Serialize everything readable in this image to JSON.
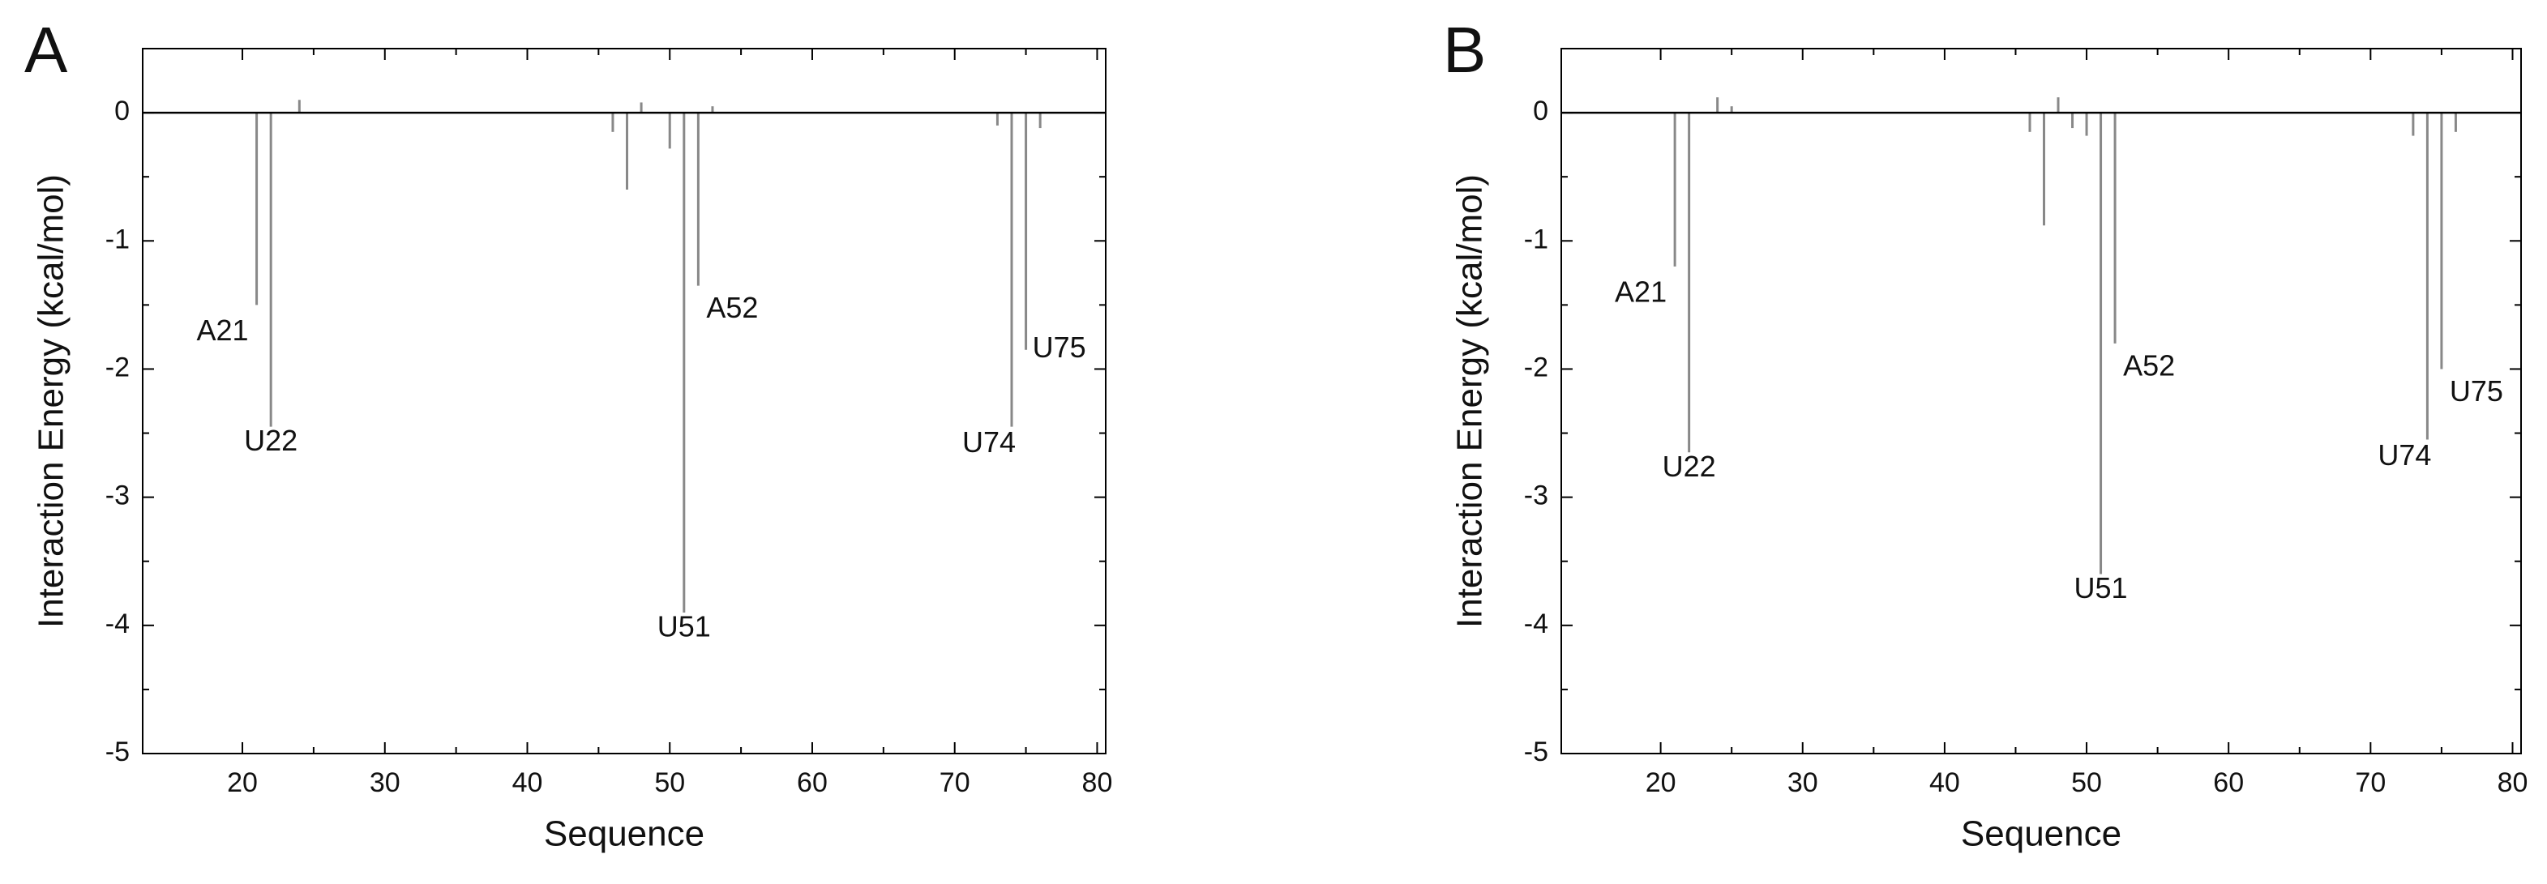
{
  "chart_data": [
    {
      "type": "bar",
      "title": "A",
      "xlabel": "Sequence",
      "ylabel": "Interaction Energy (kcal/mol)",
      "color": "#888888",
      "x": [
        21,
        22,
        24,
        46,
        47,
        48,
        50,
        51,
        52,
        53,
        73,
        74,
        75,
        76
      ],
      "values": [
        -1.5,
        -2.45,
        0.1,
        -0.15,
        -0.6,
        0.08,
        -0.28,
        -3.9,
        -1.35,
        0.05,
        -0.1,
        -2.45,
        -1.85,
        -0.12
      ],
      "point_labels": [
        "A21",
        "U22",
        null,
        null,
        null,
        null,
        null,
        "U51",
        "A52",
        null,
        null,
        "U74",
        "U75",
        null
      ],
      "xlim": [
        13,
        80.6
      ],
      "xticks": [
        20,
        30,
        40,
        50,
        60,
        70,
        80
      ],
      "ylim": [
        -5,
        0.5
      ],
      "yticks": [
        0,
        -1,
        -2,
        -3,
        -4,
        -5
      ]
    },
    {
      "type": "bar",
      "title": "B",
      "xlabel": "Sequence",
      "ylabel": "Interaction Energy (kcal/mol)",
      "color": "#888888",
      "x": [
        21,
        22,
        24,
        25,
        46,
        47,
        48,
        49,
        50,
        51,
        52,
        73,
        74,
        75,
        76
      ],
      "values": [
        -1.2,
        -2.65,
        0.12,
        0.05,
        -0.15,
        -0.88,
        0.12,
        -0.12,
        -0.18,
        -3.6,
        -1.8,
        -0.18,
        -2.55,
        -2.0,
        -0.15
      ],
      "point_labels": [
        "A21",
        "U22",
        null,
        null,
        null,
        null,
        null,
        null,
        null,
        "U51",
        "A52",
        null,
        "U74",
        "U75",
        null
      ],
      "xlim": [
        13,
        80.6
      ],
      "xticks": [
        20,
        30,
        40,
        50,
        60,
        70,
        80
      ],
      "ylim": [
        -5,
        0.5
      ],
      "yticks": [
        0,
        -1,
        -2,
        -3,
        -4,
        -5
      ]
    }
  ]
}
